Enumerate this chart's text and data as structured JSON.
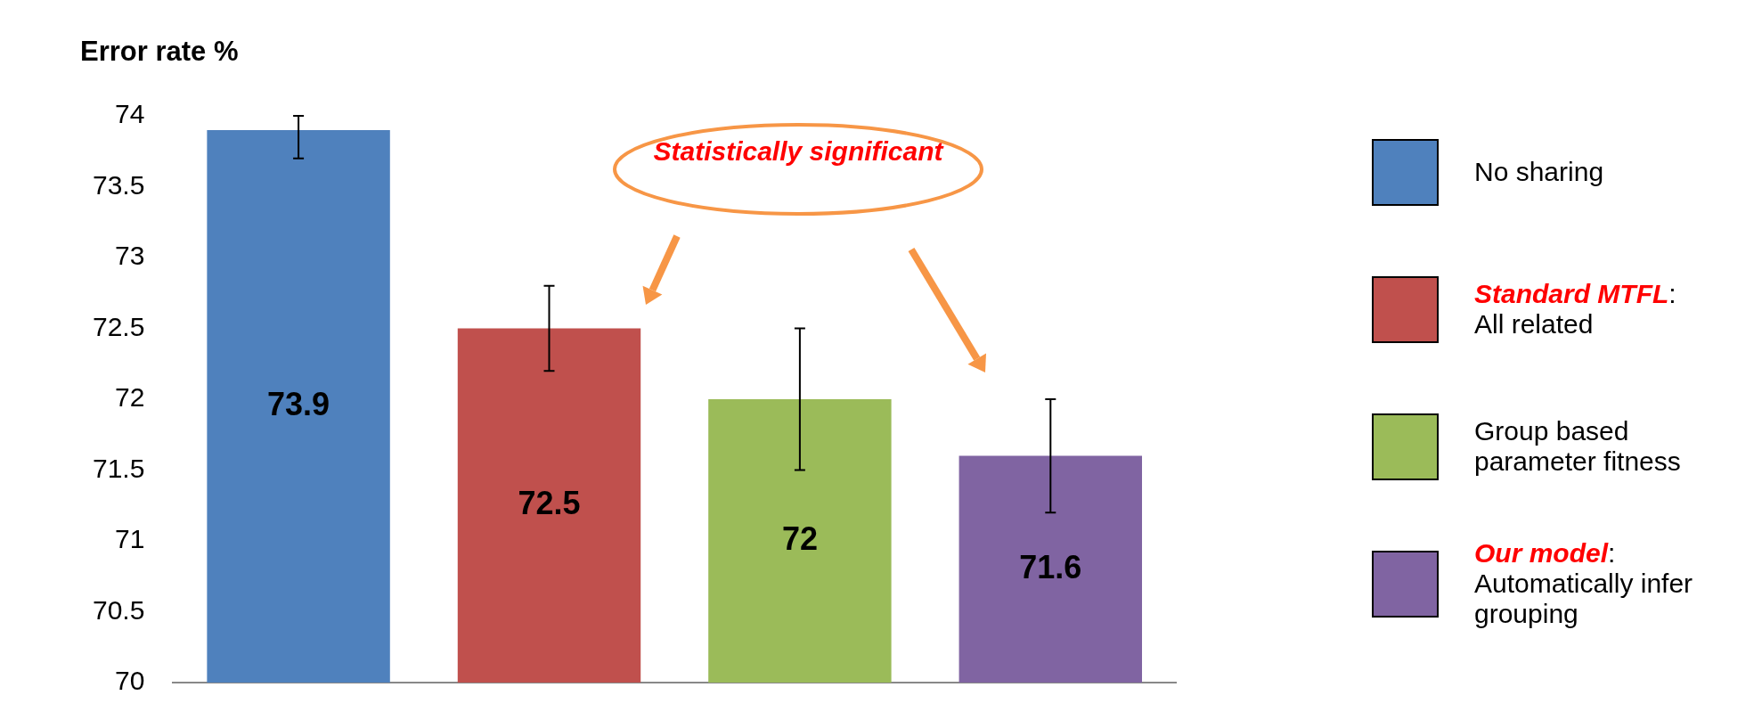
{
  "chart_data": {
    "type": "bar",
    "ylabel": "Error rate %",
    "categories": [
      null,
      null,
      null,
      null
    ],
    "series": [
      {
        "name": "No sharing",
        "color": "#4f81bd",
        "values": [
          73.9,
          null,
          null,
          null
        ],
        "errors": [
          [
            73.7,
            74.0
          ],
          null,
          null,
          null
        ]
      },
      {
        "name": "Standard MTFL: All related",
        "color": "#c0504d",
        "values": [
          null,
          72.5,
          null,
          null
        ],
        "errors": [
          null,
          [
            72.2,
            72.8
          ],
          null,
          null
        ]
      },
      {
        "name": "Group based parameter fitness",
        "color": "#9bbb59",
        "values": [
          null,
          null,
          72,
          null
        ],
        "errors": [
          null,
          null,
          [
            71.5,
            72.5
          ],
          null
        ]
      },
      {
        "name": "Our model: Automatically infer grouping",
        "color": "#8064a2",
        "values": [
          null,
          null,
          null,
          71.6
        ],
        "errors": [
          null,
          null,
          null,
          [
            71.2,
            72.0
          ]
        ]
      }
    ],
    "ylim": [
      70,
      74
    ],
    "yticks": [
      70,
      70.5,
      71,
      71.5,
      72,
      72.5,
      73,
      73.5,
      74
    ],
    "data_labels": true,
    "legend": "right",
    "annotations": [
      "Statistically significant"
    ]
  }
}
